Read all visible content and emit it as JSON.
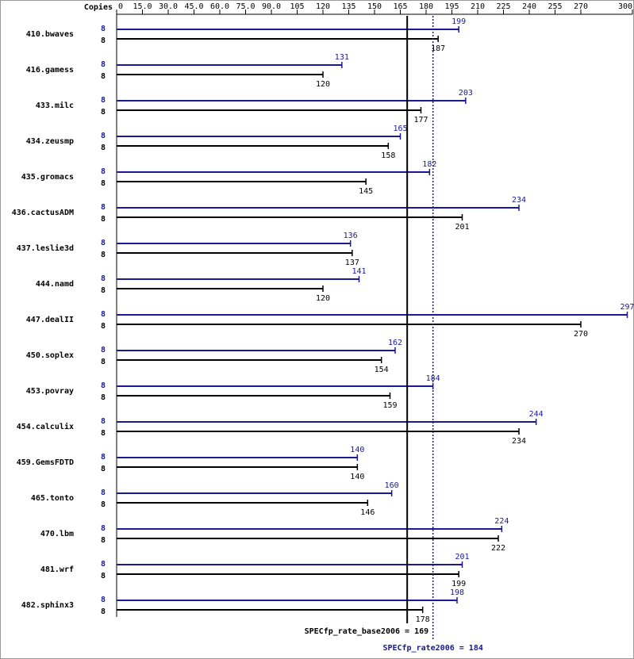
{
  "chart_data": {
    "type": "bar",
    "orientation": "horizontal",
    "copies_label": "Copies",
    "categories": [
      "410.bwaves",
      "416.gamess",
      "433.milc",
      "434.zeusmp",
      "435.gromacs",
      "436.cactusADM",
      "437.leslie3d",
      "444.namd",
      "447.dealII",
      "450.soplex",
      "453.povray",
      "454.calculix",
      "459.GemsFDTD",
      "465.tonto",
      "470.lbm",
      "481.wrf",
      "482.sphinx3"
    ],
    "series": [
      {
        "color": "#191996",
        "copies": [
          8,
          8,
          8,
          8,
          8,
          8,
          8,
          8,
          8,
          8,
          8,
          8,
          8,
          8,
          8,
          8,
          8
        ],
        "values": [
          199,
          131,
          203,
          165,
          182,
          234,
          136,
          141,
          297,
          162,
          184,
          244,
          140,
          160,
          224,
          201,
          198
        ]
      },
      {
        "color": "#000000",
        "copies": [
          8,
          8,
          8,
          8,
          8,
          8,
          8,
          8,
          8,
          8,
          8,
          8,
          8,
          8,
          8,
          8,
          8
        ],
        "values": [
          187,
          120,
          177,
          158,
          145,
          201,
          137,
          120,
          270,
          154,
          159,
          234,
          140,
          146,
          222,
          199,
          178
        ]
      }
    ],
    "xlim": [
      0,
      300
    ],
    "xticks": [
      0,
      {
        "value": 15,
        "label": "15.0"
      },
      {
        "value": 30,
        "label": "30.0"
      },
      {
        "value": 45,
        "label": "45.0"
      },
      {
        "value": 60,
        "label": "60.0"
      },
      {
        "value": 75,
        "label": "75.0"
      },
      {
        "value": 90,
        "label": "90.0"
      },
      105,
      120,
      135,
      150,
      165,
      180,
      195,
      210,
      225,
      240,
      255,
      270,
      300
    ],
    "reference_lines": [
      {
        "label": "SPECfp_rate_base2006 = 169",
        "value": 169,
        "color": "#000000",
        "style": "solid"
      },
      {
        "label": "SPECfp_rate2006 = 184",
        "value": 184,
        "color": "#191996",
        "style": "dotted"
      }
    ]
  }
}
